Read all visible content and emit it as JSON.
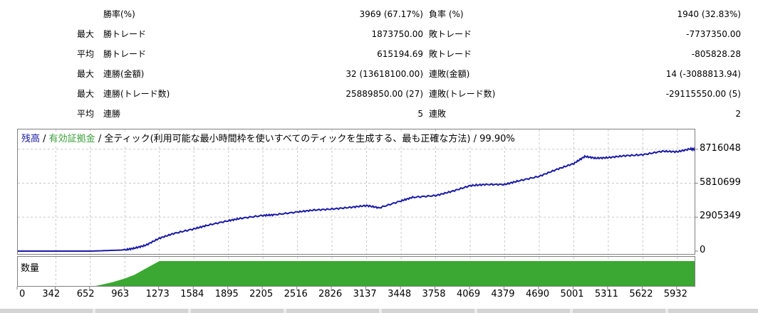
{
  "stats": {
    "rows": [
      {
        "label1": "",
        "label2": "勝率(%)",
        "value1": "3969 (67.17%)",
        "label3": "負率 (%)",
        "value2": "1940 (32.83%)"
      },
      {
        "label1": "最大",
        "label2": "勝トレード",
        "value1": "1873750.00",
        "label3": "敗トレード",
        "value2": "-7737350.00"
      },
      {
        "label1": "平均",
        "label2": "勝トレード",
        "value1": "615194.69",
        "label3": "敗トレード",
        "value2": "-805828.28"
      },
      {
        "label1": "最大",
        "label2": "連勝(金額)",
        "value1": "32 (13618100.00)",
        "label3": "連敗(金額)",
        "value2": "14 (-3088813.94)"
      },
      {
        "label1": "最大",
        "label2": "連勝(トレード数)",
        "value1": "25889850.00 (27)",
        "label3": "連敗(トレード数)",
        "value2": "-29115550.00 (5)"
      },
      {
        "label1": "平均",
        "label2": "連勝",
        "value1": "5",
        "label3": "連敗",
        "value2": "2"
      }
    ]
  },
  "legend": {
    "balance": "残高",
    "sep1": " / ",
    "equity": "有効証拠金",
    "sep2": " / ",
    "model": "全ティック(利用可能な最小時間枠を使いすべてのティックを生成する、最も正確な方法)",
    "sep3": " / ",
    "quality": "99.90%"
  },
  "volume_label": "数量",
  "colors": {
    "balance": "#1a1aa6",
    "equity": "#3aa03a",
    "volume": "#3aa832",
    "grid": "#c8c8c8"
  },
  "chart_data": {
    "type": "line",
    "series": [
      {
        "name": "残高",
        "x": [
          0,
          342,
          652,
          963,
          1050,
          1150,
          1273,
          1400,
          1584,
          1700,
          1895,
          2000,
          2205,
          2300,
          2516,
          2650,
          2826,
          3000,
          3137,
          3250,
          3448,
          3550,
          3758,
          3900,
          4069,
          4200,
          4379,
          4500,
          4690,
          4850,
          5001,
          5100,
          5200,
          5311,
          5450,
          5622,
          5800,
          5932,
          6050,
          6100
        ],
        "values": [
          0,
          0,
          0,
          100000,
          250000,
          500000,
          1100000,
          1500000,
          1900000,
          2200000,
          2600000,
          2800000,
          3050000,
          3100000,
          3350000,
          3500000,
          3600000,
          3750000,
          3900000,
          3700000,
          4300000,
          4600000,
          4750000,
          5100000,
          5600000,
          5700000,
          5700000,
          6000000,
          6400000,
          7000000,
          7500000,
          8100000,
          7950000,
          8000000,
          8150000,
          8250000,
          8550000,
          8500000,
          8750000,
          8700000
        ]
      }
    ],
    "volume": {
      "x": [
        0,
        700,
        850,
        963,
        1050,
        1150,
        1273,
        6100
      ],
      "values": [
        0,
        0,
        0.15,
        0.3,
        0.45,
        0.7,
        1,
        1
      ]
    },
    "yticks": [
      "8716048",
      "5810699",
      "2905349",
      "0"
    ],
    "ytick_values": [
      8716048,
      5810699,
      2905349,
      0
    ],
    "ylim": [
      0,
      9800000
    ],
    "xticks": [
      "0",
      "342",
      "652",
      "963",
      "1273",
      "1584",
      "1895",
      "2205",
      "2516",
      "2826",
      "3137",
      "3448",
      "3758",
      "4069",
      "4379",
      "4690",
      "5001",
      "5311",
      "5622",
      "5932"
    ],
    "xtick_values": [
      0,
      342,
      652,
      963,
      1273,
      1584,
      1895,
      2205,
      2516,
      2826,
      3137,
      3448,
      3758,
      4069,
      4379,
      4690,
      5001,
      5311,
      5622,
      5932
    ],
    "xlim": [
      0,
      6100
    ],
    "grid": true
  }
}
